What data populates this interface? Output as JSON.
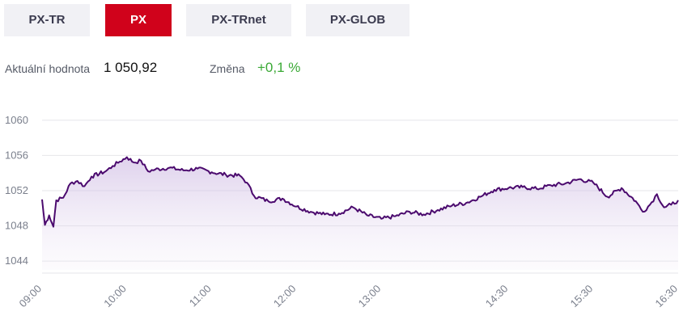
{
  "tabs": [
    {
      "label": "PX-TR",
      "active": false
    },
    {
      "label": "PX",
      "active": true
    },
    {
      "label": "PX-TRnet",
      "active": false
    },
    {
      "label": "PX-GLOB",
      "active": false
    }
  ],
  "stats": {
    "current_label": "Aktuální hodnota",
    "current_value": "1 050,92",
    "change_label": "Změna",
    "change_value": "+0,1 %"
  },
  "colors": {
    "accent": "#d0021b",
    "line": "#4b0a6e",
    "positive": "#3aa935",
    "tab_bg": "#f1f1f5"
  },
  "chart_data": {
    "type": "area",
    "y_ticks": [
      "1060",
      "1056",
      "1052",
      "1048",
      "1044"
    ],
    "x_ticks": [
      "09:00",
      "10:00",
      "11:00",
      "12:00",
      "13:00",
      "14:30",
      "15:30",
      "16:30"
    ],
    "ylim": [
      1043,
      1062
    ],
    "grid": true,
    "series": [
      {
        "points": [
          [
            "09:00",
            1051.0
          ],
          [
            "09:02",
            1048.1
          ],
          [
            "09:05",
            1049.2
          ],
          [
            "09:08",
            1047.9
          ],
          [
            "09:10",
            1050.9
          ],
          [
            "09:15",
            1051.2
          ],
          [
            "09:20",
            1052.8
          ],
          [
            "09:25",
            1053.1
          ],
          [
            "09:30",
            1052.5
          ],
          [
            "09:35",
            1053.6
          ],
          [
            "09:45",
            1054.2
          ],
          [
            "09:50",
            1054.8
          ],
          [
            "09:55",
            1055.3
          ],
          [
            "10:00",
            1055.8
          ],
          [
            "10:05",
            1055.2
          ],
          [
            "10:10",
            1055.4
          ],
          [
            "10:15",
            1054.2
          ],
          [
            "10:20",
            1054.4
          ],
          [
            "10:30",
            1054.6
          ],
          [
            "10:40",
            1054.3
          ],
          [
            "10:50",
            1054.5
          ],
          [
            "11:00",
            1054.1
          ],
          [
            "11:10",
            1053.8
          ],
          [
            "11:20",
            1053.7
          ],
          [
            "11:25",
            1052.9
          ],
          [
            "11:30",
            1051.4
          ],
          [
            "11:40",
            1050.8
          ],
          [
            "11:50",
            1051.1
          ],
          [
            "12:00",
            1050.2
          ],
          [
            "12:10",
            1049.6
          ],
          [
            "12:20",
            1049.3
          ],
          [
            "12:30",
            1049.4
          ],
          [
            "12:40",
            1050.1
          ],
          [
            "12:50",
            1049.2
          ],
          [
            "13:00",
            1048.8
          ],
          [
            "13:10",
            1049.1
          ],
          [
            "13:20",
            1049.6
          ],
          [
            "13:30",
            1049.3
          ],
          [
            "13:40",
            1049.8
          ],
          [
            "13:50",
            1050.3
          ],
          [
            "14:00",
            1050.6
          ],
          [
            "14:10",
            1051.3
          ],
          [
            "14:20",
            1052.1
          ],
          [
            "14:30",
            1052.3
          ],
          [
            "14:40",
            1052.4
          ],
          [
            "14:50",
            1052.2
          ],
          [
            "15:00",
            1052.6
          ],
          [
            "15:10",
            1052.8
          ],
          [
            "15:20",
            1053.3
          ],
          [
            "15:30",
            1052.9
          ],
          [
            "15:40",
            1051.3
          ],
          [
            "15:50",
            1052.3
          ],
          [
            "16:00",
            1050.8
          ],
          [
            "16:05",
            1049.6
          ],
          [
            "16:10",
            1050.4
          ],
          [
            "16:15",
            1051.6
          ],
          [
            "16:20",
            1050.1
          ],
          [
            "16:25",
            1050.4
          ],
          [
            "16:30",
            1050.9
          ]
        ]
      }
    ]
  }
}
